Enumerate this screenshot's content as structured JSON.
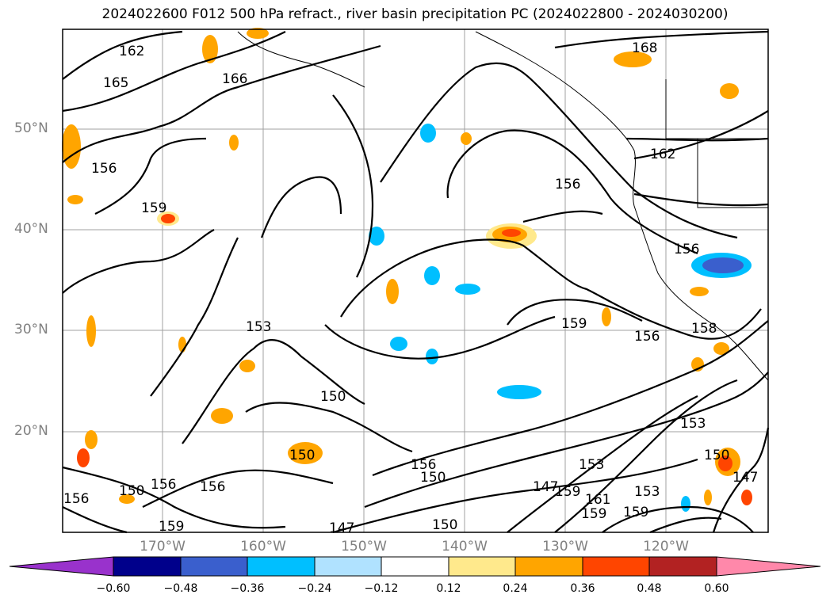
{
  "title": "2024022600 F012 500 hPa refract., river basin precipitation PC (2024022800 - 2024030200)",
  "lat_labels": [
    "50°N",
    "40°N",
    "30°N",
    "20°N"
  ],
  "lon_labels": [
    "170°W",
    "160°W",
    "150°W",
    "140°W",
    "130°W",
    "120°W"
  ],
  "colorbar": {
    "ticks": [
      "−0.60",
      "−0.48",
      "−0.36",
      "−0.24",
      "−0.12",
      "0.12",
      "0.24",
      "0.36",
      "0.48",
      "0.60"
    ],
    "colors": [
      "#9932cc",
      "#00008b",
      "#3a5fcd",
      "#00bfff",
      "#b0e2ff",
      "#ffffff",
      "#ffe98c",
      "#ffa500",
      "#ff4500",
      "#b22222",
      "#ff88aa"
    ]
  },
  "contour_labels": [
    "162",
    "165",
    "166",
    "168",
    "156",
    "159",
    "162",
    "156",
    "156",
    "153",
    "150",
    "159",
    "156",
    "158",
    "150",
    "156",
    "150",
    "156",
    "156",
    "150",
    "147",
    "153",
    "159",
    "161",
    "159",
    "153",
    "159",
    "150",
    "147",
    "159",
    "147",
    "150",
    "153",
    "156"
  ],
  "colors": {
    "frame": "#000000",
    "grid": "#808080",
    "contour": "#000000"
  }
}
